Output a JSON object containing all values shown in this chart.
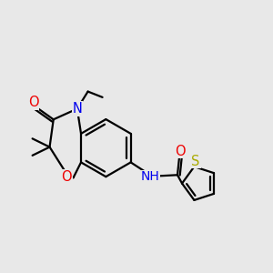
{
  "background_color": "#e8e8e8",
  "atom_colors": {
    "N": "#0000ee",
    "O": "#ee0000",
    "S": "#aaaa00",
    "C": "#000000",
    "H": "#555555"
  },
  "bond_width": 1.6,
  "font_size": 10.5,
  "figsize": [
    3.0,
    3.0
  ],
  "dpi": 100,
  "xlim": [
    -1.5,
    5.5
  ],
  "ylim": [
    -2.2,
    2.8
  ]
}
